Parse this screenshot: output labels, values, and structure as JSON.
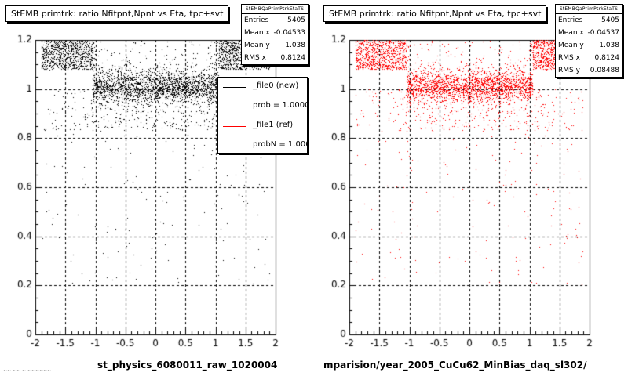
{
  "chart_data": [
    {
      "type": "scatter",
      "title": "StEMB primtrk: ratio Nfitpnt,Npnt vs Eta, tpc+svt",
      "xlabel": "st_physics_6080011_raw_1020004",
      "ylabel": "",
      "xlim": [
        -2,
        2
      ],
      "ylim": [
        0,
        1.2
      ],
      "xticks": [
        "-2",
        "-1.5",
        "-1",
        "-0.5",
        "0",
        "0.5",
        "1",
        "1.5",
        "2"
      ],
      "yticks": [
        "0",
        "0.2",
        "0.4",
        "0.6",
        "0.8",
        "1",
        "1.2"
      ],
      "grid": true,
      "color": "#000000",
      "stats": {
        "name": "StEMBQaPrimPtrkEtaTS",
        "rows": [
          [
            "Entries",
            "5405"
          ],
          [
            "Mean x",
            "-0.04533"
          ],
          [
            "Mean y",
            "1.038"
          ],
          [
            "RMS x",
            "0.8124"
          ]
        ]
      },
      "legend": [
        {
          "label": "_file0 (new)",
          "color": "#000000"
        },
        {
          "label": "prob = 1.000000",
          "color": "#000000"
        },
        {
          "label": "_file1 (ref)",
          "color": "#ff0000"
        },
        {
          "label": "probN = 1.000000",
          "color": "#ff0000"
        }
      ]
    },
    {
      "type": "scatter",
      "title": "StEMB primtrk: ratio Nfitpnt,Npnt vs Eta, tpc+svt",
      "xlabel": "mparision/year_2005_CuCu62_MinBias_daq_sl302/",
      "ylabel": "",
      "xlim": [
        -2,
        2
      ],
      "ylim": [
        0,
        1.2
      ],
      "xticks": [
        "-2",
        "-1.5",
        "-1",
        "-0.5",
        "0",
        "0.5",
        "1",
        "1.5",
        "2"
      ],
      "yticks": [
        "0",
        "0.2",
        "0.4",
        "0.6",
        "0.8",
        "1",
        "1.2"
      ],
      "grid": true,
      "color": "#ff0000",
      "stats": {
        "name": "StEMBQaPrimPtrkEtaTS",
        "rows": [
          [
            "Entries",
            "5405"
          ],
          [
            "Mean x",
            "-0.04537"
          ],
          [
            "Mean y",
            "1.038"
          ],
          [
            "RMS x",
            "0.8124"
          ],
          [
            "RMS y",
            "0.08488"
          ]
        ]
      }
    }
  ],
  "corner_text": "~~ ~~ ~ ~~~~~~"
}
